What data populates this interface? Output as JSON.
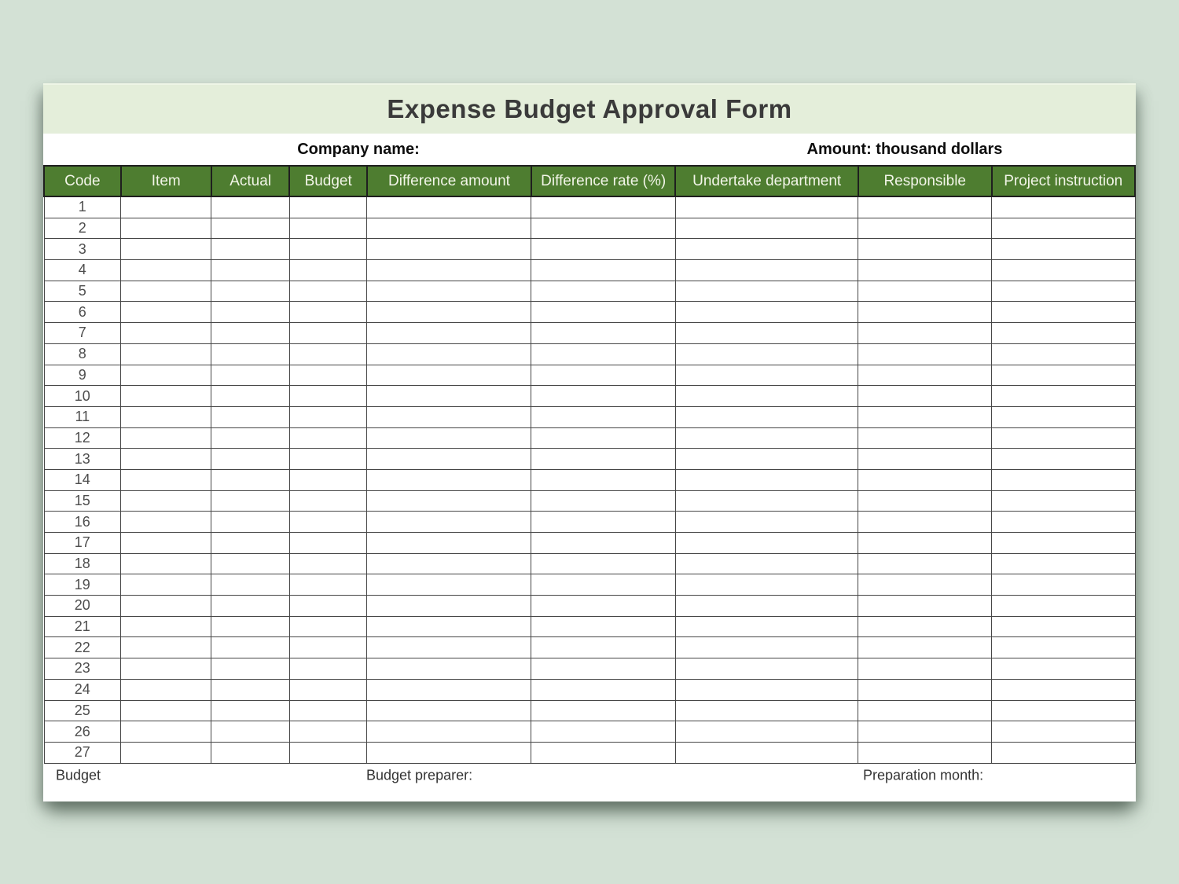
{
  "page": {
    "background_color": "#d3e1d5"
  },
  "form": {
    "title": "Expense Budget Approval Form",
    "title_bar_color": "#e4eeda",
    "subhead": {
      "company_label": "Company name:",
      "amount_label": "Amount: thousand dollars"
    },
    "table": {
      "header_color": "#4e7d30",
      "header_text_color": "#f2f5e8",
      "columns": [
        "Code",
        "Item",
        "Actual",
        "Budget",
        "Difference amount",
        "Difference rate (%)",
        "Undertake department",
        "Responsible",
        "Project instruction"
      ],
      "row_codes": [
        "1",
        "2",
        "3",
        "4",
        "5",
        "6",
        "7",
        "8",
        "9",
        "10",
        "11",
        "12",
        "13",
        "14",
        "15",
        "16",
        "17",
        "18",
        "19",
        "20",
        "21",
        "22",
        "23",
        "24",
        "25",
        "26",
        "27"
      ]
    },
    "footer": {
      "left_label": "Budget",
      "middle_label": "Budget preparer:",
      "right_label": "Preparation month:"
    }
  }
}
